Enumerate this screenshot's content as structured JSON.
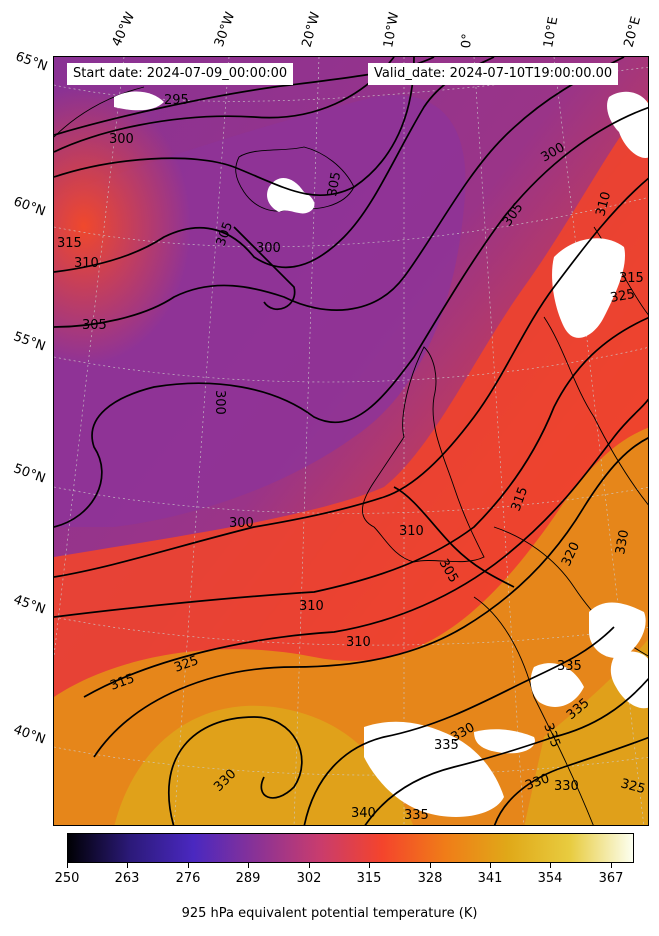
{
  "header": {
    "start_date": "Start date: 2024-07-09_00:00:00",
    "valid_date": "Valid_date: 2024-07-10T19:00:00.00"
  },
  "longitude_labels": [
    "40°W",
    "30°W",
    "20°W",
    "10°W",
    "0°",
    "10°E",
    "20°E"
  ],
  "latitude_labels": [
    "65°N",
    "60°N",
    "55°N",
    "50°N",
    "45°N",
    "40°N"
  ],
  "contour_labels": [
    "295",
    "300",
    "305",
    "300",
    "305",
    "315",
    "310",
    "305",
    "300",
    "305",
    "310",
    "300",
    "300",
    "310",
    "315",
    "305",
    "310",
    "310",
    "315",
    "325",
    "315",
    "325",
    "320",
    "330",
    "335",
    "335",
    "330",
    "335",
    "330",
    "340",
    "335",
    "330",
    "330",
    "325",
    "335"
  ],
  "colorbar": {
    "title": "925 hPa equivalent potential temperature (K)",
    "ticks": [
      "250",
      "263",
      "276",
      "289",
      "302",
      "315",
      "328",
      "341",
      "354",
      "367"
    ],
    "range": [
      250,
      372
    ],
    "colors": [
      "#000004",
      "#2c1a7a",
      "#4a28c0",
      "#8a3296",
      "#c83c6e",
      "#f4442c",
      "#f07c18",
      "#e0a818",
      "#e8cc40",
      "#fcfff0"
    ]
  }
}
